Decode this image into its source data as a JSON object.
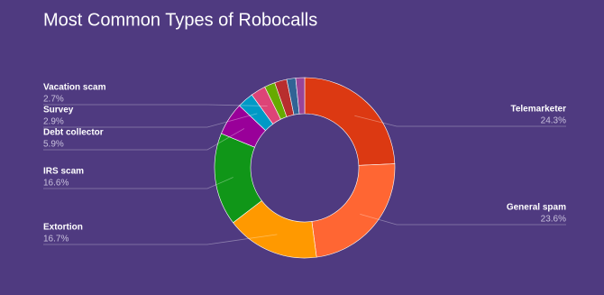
{
  "chart_data": {
    "type": "pie",
    "title": "Most Common Types of Robocalls",
    "categories": [
      "Telemarketer",
      "General spam",
      "Extortion",
      "IRS scam",
      "Debt collector",
      "Survey",
      "Vacation scam",
      null,
      null,
      null,
      null
    ],
    "values": [
      24.3,
      23.6,
      16.7,
      16.6,
      5.9,
      2.9,
      2.7,
      1.9,
      2.2,
      1.6,
      1.6
    ],
    "value_labels": [
      "24.3%",
      "23.6%",
      "16.7%",
      "16.6%",
      "5.9%",
      "2.9%",
      "2.7%",
      null,
      null,
      null,
      null
    ],
    "colors": [
      "#dc3912",
      "#ff6633",
      "#ff9900",
      "#109618",
      "#990099",
      "#0099c6",
      "#dd4477",
      "#66aa00",
      "#b82e2e",
      "#316395",
      "#994499"
    ],
    "donut": true
  }
}
